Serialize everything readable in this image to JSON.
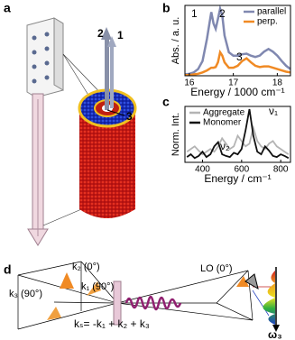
{
  "panel_labels": [
    "a",
    "b",
    "c",
    "d"
  ],
  "panel_a": {
    "labels": [
      "2",
      "1",
      "3"
    ]
  },
  "chart_data": [
    {
      "type": "line",
      "x_label": "Energy / 1000 cm⁻¹",
      "y_label": "Abs. / a. u.",
      "legend": "upper right",
      "x": [
        15.9,
        16.0,
        16.1,
        16.2,
        16.3,
        16.4,
        16.5,
        16.55,
        16.6,
        16.65,
        16.7,
        16.75,
        16.8,
        16.9,
        17.0,
        17.1,
        17.2,
        17.3,
        17.4,
        17.5,
        17.6,
        17.7,
        17.8,
        17.9,
        18.0,
        18.1,
        18.2,
        18.3
      ],
      "series": [
        {
          "name": "parallel",
          "color": "#8088b0",
          "values": [
            0.02,
            0.03,
            0.05,
            0.1,
            0.22,
            0.55,
            0.95,
            0.78,
            0.7,
            0.85,
            1.0,
            0.9,
            0.6,
            0.35,
            0.3,
            0.3,
            0.32,
            0.33,
            0.3,
            0.28,
            0.3,
            0.36,
            0.4,
            0.36,
            0.3,
            0.22,
            0.15,
            0.1
          ]
        },
        {
          "name": "perp.",
          "color": "#f08a24",
          "values": [
            0.01,
            0.01,
            0.02,
            0.03,
            0.05,
            0.08,
            0.12,
            0.12,
            0.13,
            0.2,
            0.35,
            0.3,
            0.2,
            0.12,
            0.12,
            0.15,
            0.22,
            0.26,
            0.2,
            0.15,
            0.13,
            0.14,
            0.14,
            0.12,
            0.1,
            0.08,
            0.06,
            0.05
          ]
        }
      ],
      "annotations": [
        "1",
        "2",
        "3"
      ],
      "xlim": [
        15.9,
        18.3
      ],
      "ylim": [
        0,
        1.05
      ],
      "xticks": [
        16,
        17,
        18
      ]
    },
    {
      "type": "line",
      "x_label": "Energy / cm⁻¹",
      "y_label": "Norm. Int.",
      "legend": "upper left",
      "x": [
        320,
        340,
        360,
        380,
        400,
        420,
        440,
        460,
        480,
        500,
        520,
        540,
        560,
        580,
        600,
        620,
        640,
        660,
        680,
        700,
        720,
        740,
        760,
        780,
        800,
        820,
        840
      ],
      "series": [
        {
          "name": "Aggregate",
          "color": "#b4b4b4",
          "values": [
            0.2,
            0.25,
            0.3,
            0.22,
            0.15,
            0.2,
            0.25,
            0.2,
            0.3,
            0.45,
            0.35,
            0.25,
            0.3,
            0.5,
            0.4,
            0.3,
            0.35,
            0.65,
            0.4,
            0.3,
            0.25,
            0.35,
            0.4,
            0.3,
            0.25,
            0.2,
            0.15
          ]
        },
        {
          "name": "Monomer",
          "color": "#111111",
          "values": [
            0.1,
            0.15,
            0.08,
            0.12,
            0.2,
            0.1,
            0.15,
            0.3,
            0.38,
            0.15,
            0.12,
            0.1,
            0.18,
            0.15,
            0.25,
            0.6,
            1.0,
            0.5,
            0.2,
            0.15,
            0.3,
            0.22,
            0.12,
            0.1,
            0.15,
            0.12,
            0.08
          ]
        }
      ],
      "annotations": [
        "ν₁",
        "ν₂"
      ],
      "xlim": [
        310,
        850
      ],
      "ylim": [
        0,
        1.05
      ],
      "xticks": [
        400,
        600,
        800
      ]
    }
  ],
  "panel_d": {
    "beams": [
      "k₂ (0°)",
      "k₁ (90°)",
      "k₃ (90°)",
      "LO (0°)"
    ],
    "equation": "kₛ= -k₁ + k₂ + k₃",
    "axis": "ω₃"
  }
}
